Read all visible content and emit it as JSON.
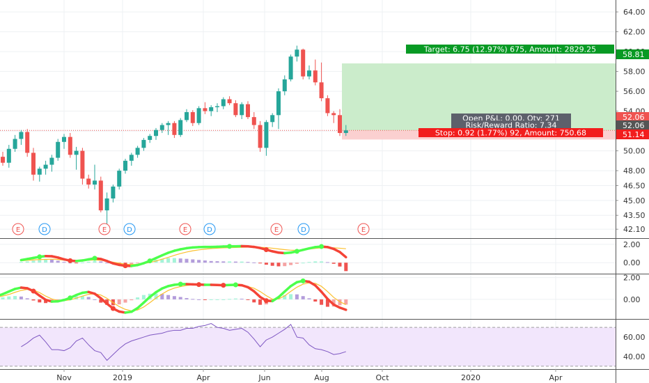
{
  "colors": {
    "up": "#26a69a",
    "down": "#ef5350",
    "grid": "#eef0f3",
    "axis_text": "#333333",
    "target": "#089a24",
    "stop": "#f21d1d",
    "info": "#5d606b",
    "profit_zone": "#cbeccb",
    "loss_zone": "#fbd0d0",
    "rsi_band": "#f2e6fc",
    "rsi_line": "#7e57c2"
  },
  "chart_data": [
    {
      "type": "candlestick",
      "x_tick_labels": [
        "Nov",
        "2019",
        "Apr",
        "Jun",
        "Aug",
        "Oct",
        "2020",
        "Apr"
      ],
      "y_tick_labels": [
        "64.00",
        "62.00",
        "60.00",
        "58.00",
        "56.00",
        "54.00",
        "52.00",
        "50.00",
        "48.00",
        "46.50",
        "45.00",
        "43.50",
        "42.10"
      ],
      "ylim": [
        41.2,
        65.2
      ],
      "last_price": 52.06,
      "candles": [
        {
          "o": 49.4,
          "h": 49.9,
          "l": 48.5,
          "c": 48.8
        },
        {
          "o": 48.8,
          "h": 50.6,
          "l": 48.3,
          "c": 50.2
        },
        {
          "o": 50.2,
          "h": 51.6,
          "l": 49.9,
          "c": 51.2
        },
        {
          "o": 51.2,
          "h": 52.1,
          "l": 50.6,
          "c": 51.9
        },
        {
          "o": 51.9,
          "h": 52.2,
          "l": 49.4,
          "c": 49.8
        },
        {
          "o": 49.8,
          "h": 50.3,
          "l": 47.0,
          "c": 47.6
        },
        {
          "o": 47.6,
          "h": 48.4,
          "l": 46.9,
          "c": 48.2
        },
        {
          "o": 48.2,
          "h": 49.0,
          "l": 47.6,
          "c": 48.6
        },
        {
          "o": 48.6,
          "h": 49.6,
          "l": 47.9,
          "c": 49.3
        },
        {
          "o": 49.3,
          "h": 51.2,
          "l": 49.0,
          "c": 50.9
        },
        {
          "o": 50.9,
          "h": 51.7,
          "l": 50.2,
          "c": 51.4
        },
        {
          "o": 51.4,
          "h": 51.8,
          "l": 49.3,
          "c": 49.6
        },
        {
          "o": 49.6,
          "h": 50.4,
          "l": 48.1,
          "c": 50.0
        },
        {
          "o": 50.0,
          "h": 50.3,
          "l": 46.6,
          "c": 47.2
        },
        {
          "o": 47.2,
          "h": 47.6,
          "l": 46.2,
          "c": 46.6
        },
        {
          "o": 46.6,
          "h": 48.6,
          "l": 46.1,
          "c": 47.0
        },
        {
          "o": 47.0,
          "h": 47.4,
          "l": 43.8,
          "c": 44.0
        },
        {
          "o": 44.0,
          "h": 45.8,
          "l": 42.6,
          "c": 45.2
        },
        {
          "o": 45.2,
          "h": 46.6,
          "l": 44.8,
          "c": 46.4
        },
        {
          "o": 46.4,
          "h": 48.2,
          "l": 46.1,
          "c": 48.0
        },
        {
          "o": 48.0,
          "h": 49.2,
          "l": 47.7,
          "c": 49.0
        },
        {
          "o": 49.0,
          "h": 49.8,
          "l": 48.5,
          "c": 49.6
        },
        {
          "o": 49.6,
          "h": 50.5,
          "l": 49.3,
          "c": 50.3
        },
        {
          "o": 50.3,
          "h": 51.3,
          "l": 50.0,
          "c": 51.1
        },
        {
          "o": 51.1,
          "h": 51.7,
          "l": 50.8,
          "c": 51.5
        },
        {
          "o": 51.5,
          "h": 52.3,
          "l": 51.1,
          "c": 52.1
        },
        {
          "o": 52.1,
          "h": 52.8,
          "l": 51.8,
          "c": 52.6
        },
        {
          "o": 52.6,
          "h": 53.0,
          "l": 51.6,
          "c": 52.8
        },
        {
          "o": 52.8,
          "h": 53.0,
          "l": 51.3,
          "c": 51.6
        },
        {
          "o": 51.6,
          "h": 53.3,
          "l": 51.4,
          "c": 53.1
        },
        {
          "o": 53.1,
          "h": 54.2,
          "l": 52.9,
          "c": 53.9
        },
        {
          "o": 53.9,
          "h": 54.1,
          "l": 52.5,
          "c": 52.8
        },
        {
          "o": 52.8,
          "h": 54.5,
          "l": 52.6,
          "c": 54.3
        },
        {
          "o": 54.3,
          "h": 54.9,
          "l": 53.7,
          "c": 54.0
        },
        {
          "o": 54.0,
          "h": 54.6,
          "l": 53.5,
          "c": 54.4
        },
        {
          "o": 54.4,
          "h": 54.8,
          "l": 53.9,
          "c": 54.5
        },
        {
          "o": 54.5,
          "h": 55.4,
          "l": 54.2,
          "c": 55.2
        },
        {
          "o": 55.2,
          "h": 55.5,
          "l": 54.6,
          "c": 54.8
        },
        {
          "o": 54.8,
          "h": 55.1,
          "l": 53.4,
          "c": 53.6
        },
        {
          "o": 53.6,
          "h": 54.9,
          "l": 53.2,
          "c": 54.7
        },
        {
          "o": 54.7,
          "h": 55.0,
          "l": 53.2,
          "c": 53.4
        },
        {
          "o": 53.4,
          "h": 53.9,
          "l": 52.2,
          "c": 52.6
        },
        {
          "o": 52.6,
          "h": 53.0,
          "l": 49.9,
          "c": 50.3
        },
        {
          "o": 50.3,
          "h": 53.1,
          "l": 49.5,
          "c": 52.9
        },
        {
          "o": 52.9,
          "h": 53.8,
          "l": 52.4,
          "c": 53.6
        },
        {
          "o": 53.6,
          "h": 56.3,
          "l": 52.2,
          "c": 56.0
        },
        {
          "o": 56.0,
          "h": 57.6,
          "l": 55.6,
          "c": 57.2
        },
        {
          "o": 57.2,
          "h": 59.7,
          "l": 57.0,
          "c": 59.5
        },
        {
          "o": 59.5,
          "h": 60.6,
          "l": 59.0,
          "c": 60.2
        },
        {
          "o": 60.2,
          "h": 60.3,
          "l": 57.2,
          "c": 57.5
        },
        {
          "o": 57.5,
          "h": 58.6,
          "l": 57.2,
          "c": 58.1
        },
        {
          "o": 58.1,
          "h": 59.2,
          "l": 56.6,
          "c": 56.9
        },
        {
          "o": 56.9,
          "h": 58.9,
          "l": 55.0,
          "c": 55.3
        },
        {
          "o": 55.3,
          "h": 55.6,
          "l": 53.5,
          "c": 53.8
        },
        {
          "o": 53.8,
          "h": 54.0,
          "l": 52.8,
          "c": 53.6
        },
        {
          "o": 53.6,
          "h": 54.2,
          "l": 51.5,
          "c": 51.8
        },
        {
          "o": 51.8,
          "h": 52.6,
          "l": 51.5,
          "c": 52.06
        }
      ],
      "events": [
        "E",
        "D",
        "E",
        "D",
        "E",
        "D",
        "E",
        "D",
        "E"
      ],
      "position": {
        "entry": 52.06,
        "target_price": 58.81,
        "stop_price": 51.14,
        "target_label": "Target: 6.75 (12.97%) 675, Amount: 2829.25",
        "stop_label": "Stop: 0.92 (1.77%) 92, Amount: 750.68",
        "pnl_label": "Open P&L: 0.00, Qty: 271",
        "rr_label": "Risk/Reward Ratio: 7.34",
        "target_price_label": "58.81",
        "entry_price_label": "52.06",
        "stop_price_label": "51.14",
        "current_price_label": "52.06"
      }
    },
    {
      "type": "line",
      "y_tick_labels": [
        "2.00",
        "0.00"
      ],
      "ylim": [
        -1.2,
        2.6
      ],
      "signal_line": [
        0.2,
        0.26,
        0.3,
        0.34,
        0.36,
        0.38,
        0.35,
        0.28,
        0.22,
        0.2,
        0.22,
        0.26,
        0.3,
        0.26,
        0.18,
        0.06,
        -0.06,
        -0.16,
        -0.2,
        -0.18,
        -0.1,
        0.02,
        0.18,
        0.38,
        0.58,
        0.8,
        1.0,
        1.16,
        1.3,
        1.4,
        1.48,
        1.54,
        1.58,
        1.62,
        1.64,
        1.66,
        1.68,
        1.7,
        1.7,
        1.68,
        1.64,
        1.58,
        1.5,
        1.42,
        1.36,
        1.36,
        1.4,
        1.48,
        1.56,
        1.62,
        1.64,
        1.62,
        1.58,
        1.52
      ],
      "main_line": [
        0.28,
        0.4,
        0.52,
        0.64,
        0.72,
        0.7,
        0.56,
        0.36,
        0.22,
        0.18,
        0.24,
        0.36,
        0.48,
        0.4,
        0.18,
        -0.08,
        -0.24,
        -0.34,
        -0.36,
        -0.26,
        -0.06,
        0.2,
        0.5,
        0.8,
        1.08,
        1.3,
        1.46,
        1.58,
        1.66,
        1.7,
        1.72,
        1.72,
        1.74,
        1.76,
        1.78,
        1.78,
        1.8,
        1.78,
        1.72,
        1.6,
        1.42,
        1.24,
        1.1,
        1.04,
        1.1,
        1.24,
        1.4,
        1.56,
        1.7,
        1.76,
        1.7,
        1.5,
        1.16,
        0.6
      ],
      "histogram": [
        0.08,
        0.14,
        0.22,
        0.3,
        0.36,
        0.32,
        0.21,
        0.08,
        0.0,
        -0.02,
        0.02,
        0.1,
        0.18,
        0.14,
        0.0,
        -0.14,
        -0.18,
        -0.18,
        -0.16,
        -0.08,
        0.04,
        0.18,
        0.32,
        0.42,
        0.5,
        0.5,
        0.46,
        0.42,
        0.36,
        0.3,
        0.24,
        0.18,
        0.16,
        0.14,
        0.14,
        0.12,
        0.12,
        0.08,
        0.02,
        -0.08,
        -0.22,
        -0.34,
        -0.4,
        -0.38,
        -0.26,
        -0.12,
        0.0,
        0.08,
        0.14,
        0.14,
        0.06,
        -0.12,
        -0.42,
        -0.92
      ]
    },
    {
      "type": "line",
      "y_tick_labels": [
        "2.00",
        "0.00"
      ],
      "ylim": [
        -1.8,
        2.3
      ],
      "signal_line": [
        0.2,
        0.3,
        0.45,
        0.65,
        0.82,
        0.92,
        0.86,
        0.62,
        0.3,
        0.04,
        -0.1,
        -0.12,
        -0.04,
        0.12,
        0.3,
        0.46,
        0.52,
        0.4,
        0.1,
        -0.3,
        -0.66,
        -0.92,
        -1.06,
        -0.98,
        -0.7,
        -0.3,
        0.12,
        0.5,
        0.82,
        1.04,
        1.18,
        1.28,
        1.34,
        1.36,
        1.36,
        1.34,
        1.32,
        1.3,
        1.28,
        1.26,
        1.24,
        1.18,
        1.02,
        0.72,
        0.34,
        0.02,
        0.04,
        0.32,
        0.74,
        1.12,
        1.4,
        1.52,
        1.48,
        1.2,
        0.72,
        0.18,
        -0.22,
        -0.48
      ],
      "main_line": [
        0.3,
        0.48,
        0.72,
        0.96,
        1.08,
        1.02,
        0.76,
        0.34,
        -0.04,
        -0.2,
        -0.18,
        -0.06,
        0.14,
        0.4,
        0.6,
        0.68,
        0.52,
        0.1,
        -0.4,
        -0.84,
        -1.12,
        -1.22,
        -1.14,
        -0.8,
        -0.3,
        0.22,
        0.66,
        1.0,
        1.22,
        1.34,
        1.4,
        1.4,
        1.38,
        1.36,
        1.34,
        1.34,
        1.32,
        1.3,
        1.32,
        1.34,
        1.3,
        1.12,
        0.74,
        0.22,
        -0.12,
        -0.16,
        0.2,
        0.72,
        1.22,
        1.58,
        1.7,
        1.62,
        1.28,
        0.7,
        0.04,
        -0.48,
        -0.76,
        -0.96
      ],
      "histogram": [
        0.1,
        0.18,
        0.27,
        0.31,
        0.26,
        0.1,
        -0.1,
        -0.28,
        -0.34,
        -0.24,
        -0.08,
        0.06,
        0.18,
        0.28,
        0.3,
        0.22,
        0.0,
        -0.3,
        -0.5,
        -0.54,
        -0.46,
        -0.3,
        -0.08,
        0.18,
        0.4,
        0.52,
        0.54,
        0.5,
        0.4,
        0.3,
        0.22,
        0.12,
        0.04,
        0.0,
        -0.02,
        0.0,
        0.0,
        0.0,
        0.04,
        0.08,
        0.06,
        -0.06,
        -0.28,
        -0.5,
        -0.46,
        -0.18,
        0.16,
        0.4,
        0.48,
        0.46,
        0.3,
        0.1,
        -0.2,
        -0.5,
        -0.68,
        -0.66,
        -0.54,
        -0.48
      ],
      "dot_indices": [
        6,
        12,
        19,
        30,
        33,
        37,
        39,
        44,
        50
      ]
    },
    {
      "type": "line",
      "y_tick_labels": [
        "60.00",
        "40.00"
      ],
      "ylim": [
        27,
        78
      ],
      "upper_band": 70,
      "lower_band": 30,
      "values": [
        50,
        54,
        59,
        62,
        55,
        47,
        47,
        46,
        49,
        56,
        59,
        52,
        46,
        44,
        36,
        42,
        48,
        53,
        56,
        58,
        60,
        62,
        63,
        64,
        66,
        67,
        67,
        69,
        69,
        71,
        72,
        74,
        70,
        69,
        67,
        68,
        69,
        65,
        58,
        50,
        57,
        60,
        64,
        68,
        73,
        60,
        59,
        52,
        48,
        47,
        45,
        42,
        43,
        45
      ]
    }
  ]
}
